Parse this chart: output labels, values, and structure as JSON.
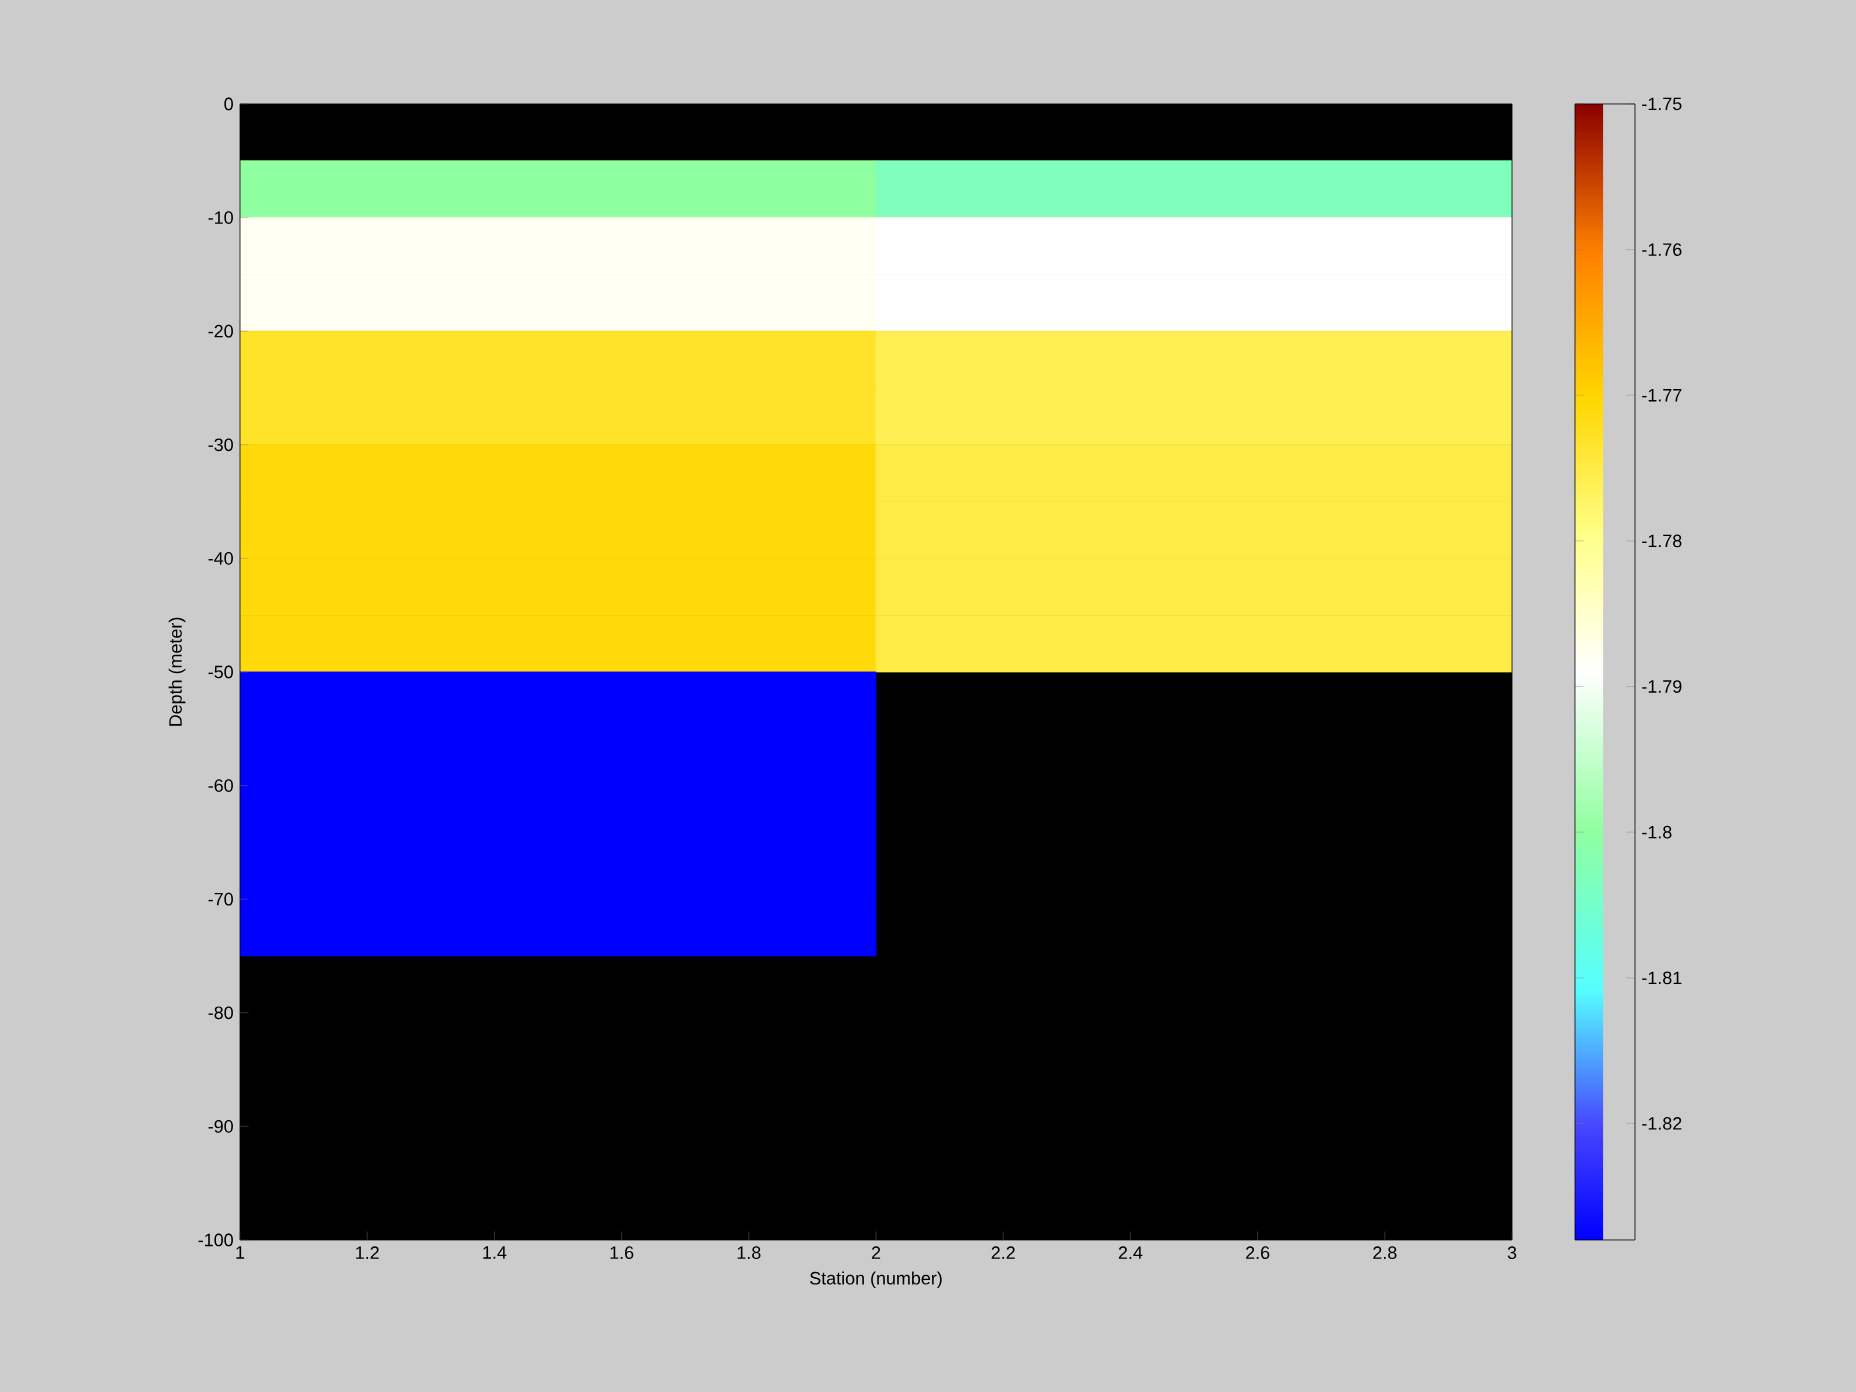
{
  "chart_data": {
    "type": "heatmap",
    "xlabel": "Station (number)",
    "ylabel": "Depth (meter)",
    "x": [
      1.5,
      2.5
    ],
    "y": [
      -7.5,
      -12.5,
      -17.5,
      -22.5,
      -27.5,
      -32.5,
      -37.5,
      -42.5,
      -47.5,
      -52.5,
      -57.5,
      -62.5,
      -67.5,
      -72.5
    ],
    "xlim": [
      1,
      3
    ],
    "xticks": [
      1,
      1.2,
      1.4,
      1.6,
      1.8,
      2,
      2.2,
      2.4,
      2.6,
      2.8,
      3
    ],
    "ylim": [
      -100,
      0
    ],
    "yticks": [
      -100,
      -90,
      -80,
      -70,
      -60,
      -50,
      -40,
      -30,
      -20,
      -10,
      0
    ],
    "cells": [
      [
        -1.8,
        -1.803
      ],
      [
        -1.788,
        -1.789
      ],
      [
        -1.788,
        -1.789
      ],
      [
        -1.773,
        -1.776
      ],
      [
        -1.773,
        -1.776
      ],
      [
        -1.771,
        -1.775
      ],
      [
        -1.771,
        -1.775
      ],
      [
        -1.771,
        -1.775
      ],
      [
        -1.771,
        -1.775
      ],
      [
        -1.828,
        null
      ],
      [
        -1.828,
        null
      ],
      [
        -1.828,
        null
      ],
      [
        -1.828,
        null
      ],
      [
        -1.828,
        null
      ]
    ],
    "clim": [
      -1.828,
      -1.75
    ],
    "cticks": [
      -1.82,
      -1.81,
      -1.8,
      -1.79,
      -1.78,
      -1.77,
      -1.76,
      -1.75
    ]
  }
}
